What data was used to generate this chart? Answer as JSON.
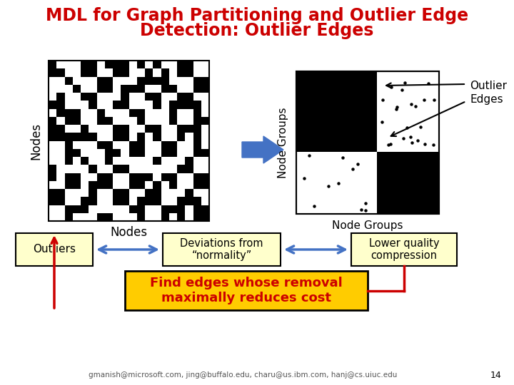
{
  "title_line1": "MDL for Graph Partitioning and Outlier Edge",
  "title_line2": "Detection: Outlier Edges",
  "title_color": "#cc0000",
  "title_fontsize": 17,
  "bg_color": "#ffffff",
  "left_matrix_label_x": "Nodes",
  "left_matrix_label_y": "Nodes",
  "right_matrix_label_x": "Node Groups",
  "right_matrix_label_y": "Node Groups",
  "outlier_edges_label": "Outlier\nEdges",
  "box_outliers_text": "Outliers",
  "box_devnorm_text": "Deviations from\n“normality”",
  "box_lowerq_text": "Lower quality\ncompression",
  "find_edges_text": "Find edges whose removal\nmaximally reduces cost",
  "footer_text": "gmanish@microsoft.com, jing@buffalo.edu, charu@us.ibm.com, hanj@cs.uiuc.edu",
  "page_num": "14",
  "arrow_color": "#4472c4",
  "red_color": "#cc0000",
  "yellow_box_color": "#ffcc00",
  "light_yellow": "#ffffcc",
  "box_border": "#000000"
}
